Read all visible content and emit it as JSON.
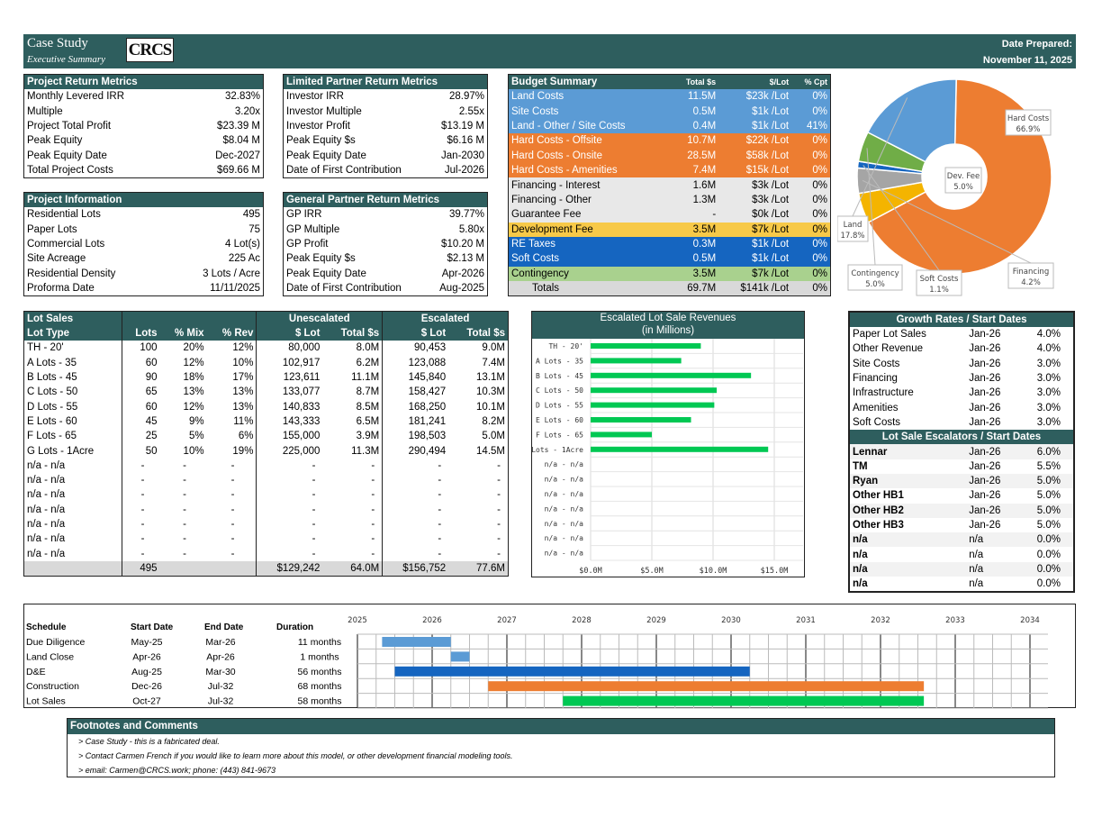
{
  "header": {
    "title": "Case Study",
    "subtitle": "Executive Summary",
    "logo_text": "CRCS",
    "date_label": "Date Prepared:",
    "date_value": "November 11, 2025"
  },
  "project_return": {
    "title": "Project Return Metrics",
    "rows": [
      {
        "label": "Monthly Levered IRR",
        "value": "32.83%"
      },
      {
        "label": "Multiple",
        "value": "3.20x"
      },
      {
        "label": "Project Total Profit",
        "value": "$23.39 M"
      },
      {
        "label": "Peak Equity",
        "value": "$8.04 M"
      },
      {
        "label": "Peak Equity Date",
        "value": "Dec-2027"
      },
      {
        "label": "Total Project Costs",
        "value": "$69.66 M"
      }
    ]
  },
  "project_info": {
    "title": "Project Information",
    "rows": [
      {
        "label": "Residential Lots",
        "value": "495"
      },
      {
        "label": "Paper Lots",
        "value": "75"
      },
      {
        "label": "Commercial Lots",
        "value": "4 Lot(s)"
      },
      {
        "label": "Site Acreage",
        "value": "225 Ac"
      },
      {
        "label": "Residential Density",
        "value": "3 Lots / Acre"
      },
      {
        "label": "Proforma Date",
        "value": "11/11/2025"
      }
    ]
  },
  "lp_return": {
    "title": "Limited Partner Return Metrics",
    "rows": [
      {
        "label": "Investor IRR",
        "value": "28.97%"
      },
      {
        "label": "Investor Multiple",
        "value": "2.55x"
      },
      {
        "label": "Investor Profit",
        "value": "$13.19 M"
      },
      {
        "label": "Peak Equity $s",
        "value": "$6.16 M"
      },
      {
        "label": "Peak Equity Date",
        "value": "Jan-2030"
      },
      {
        "label": "Date of First Contribution",
        "value": "Jul-2026"
      }
    ]
  },
  "gp_return": {
    "title": "General Partner Return Metrics",
    "rows": [
      {
        "label": "GP IRR",
        "value": "39.77%"
      },
      {
        "label": "GP Multiple",
        "value": "5.80x"
      },
      {
        "label": "GP Profit",
        "value": "$10.20 M"
      },
      {
        "label": "Peak Equity $s",
        "value": "$2.13 M"
      },
      {
        "label": "Peak Equity Date",
        "value": "Apr-2026"
      },
      {
        "label": "Date of First Contribution",
        "value": "Aug-2025"
      }
    ]
  },
  "budget": {
    "title": "Budget Summary",
    "col_total": "Total $s",
    "col_lot": "$/Lot",
    "col_cpt": "% Cpt",
    "rows": [
      {
        "label": "Land Costs",
        "total": "11.5M",
        "lot": "$23k /Lot",
        "cpt": "0%",
        "cls": "bl"
      },
      {
        "label": "Site Costs",
        "total": "0.5M",
        "lot": "$1k /Lot",
        "cpt": "0%",
        "cls": "bl"
      },
      {
        "label": "Land - Other / Site Costs",
        "total": "0.4M",
        "lot": "$1k /Lot",
        "cpt": "41%",
        "cls": "bl"
      },
      {
        "label": "Hard Costs - Offsite",
        "total": "10.7M",
        "lot": "$22k /Lot",
        "cpt": "0%",
        "cls": "or"
      },
      {
        "label": "Hard Costs - Onsite",
        "total": "28.5M",
        "lot": "$58k /Lot",
        "cpt": "0%",
        "cls": "or"
      },
      {
        "label": "Hard Costs - Amenities",
        "total": "7.4M",
        "lot": "$15k /Lot",
        "cpt": "0%",
        "cls": "or"
      },
      {
        "label": "Financing - Interest",
        "total": "1.6M",
        "lot": "$3k /Lot",
        "cpt": "0%",
        "cls": "gy"
      },
      {
        "label": "Financing - Other",
        "total": "1.3M",
        "lot": "$3k /Lot",
        "cpt": "0%",
        "cls": "gy"
      },
      {
        "label": "Guarantee Fee",
        "total": "-",
        "lot": "$0k /Lot",
        "cpt": "0%",
        "cls": "gy"
      },
      {
        "label": "Development Fee",
        "total": "3.5M",
        "lot": "$7k /Lot",
        "cpt": "0%",
        "cls": "yl"
      },
      {
        "label": "RE Taxes",
        "total": "0.3M",
        "lot": "$1k /Lot",
        "cpt": "0%",
        "cls": "db"
      },
      {
        "label": "Soft Costs",
        "total": "0.5M",
        "lot": "$1k /Lot",
        "cpt": "0%",
        "cls": "db"
      },
      {
        "label": "Contingency",
        "total": "3.5M",
        "lot": "$7k /Lot",
        "cpt": "0%",
        "cls": "gr"
      }
    ],
    "totals": {
      "label": "Totals",
      "total": "69.7M",
      "lot": "$141k /Lot",
      "cpt": "0%"
    }
  },
  "chart_data": [
    {
      "type": "pie",
      "labels": [
        "Hard Costs",
        "Dev. Fee",
        "Financing",
        "Soft Costs",
        "Contingency",
        "Land"
      ],
      "values": [
        66.9,
        5.0,
        4.2,
        1.1,
        5.0,
        17.8
      ],
      "value_labels": [
        "66.9%",
        "5.0%",
        "4.2%",
        "1.1%",
        "5.0%",
        "17.8%"
      ],
      "colors": [
        "#ed7d31",
        "#f4b400",
        "#a5a5a5",
        "#1565c0",
        "#70ad47",
        "#5b9bd5"
      ]
    },
    {
      "type": "bar",
      "title": "Escalated Lot Sale Revenues",
      "subtitle": "(in Millions)",
      "categories": [
        "TH - 20'",
        "A Lots - 35",
        "B Lots - 45",
        "C Lots - 50",
        "D Lots - 55",
        "E Lots - 60",
        "F Lots - 65",
        "G Lots - 1Acre",
        "n/a - n/a",
        "n/a - n/a",
        "n/a - n/a",
        "n/a - n/a",
        "n/a - n/a",
        "n/a - n/a",
        "n/a - n/a"
      ],
      "values": [
        9.0,
        7.4,
        13.1,
        10.3,
        10.1,
        8.2,
        5.0,
        14.5,
        0,
        0,
        0,
        0,
        0,
        0,
        0
      ],
      "xlim": [
        0,
        15
      ],
      "ticks": [
        0,
        5,
        10,
        15
      ],
      "tick_labels": [
        "$0.0M",
        "$5.0M",
        "$10.0M",
        "$15.0M"
      ],
      "color": "#00c853"
    }
  ],
  "lot_sales": {
    "h1": "Lot Sales",
    "h_unesc": "Unescalated",
    "h_esc": "Escalated",
    "cols": [
      "Lot Type",
      "Lots",
      "% Mix",
      "% Rev",
      "$ Lot",
      "Total $s",
      "$ Lot",
      "Total $s"
    ],
    "rows": [
      [
        "TH - 20'",
        "100",
        "20%",
        "12%",
        "80,000",
        "8.0M",
        "90,453",
        "9.0M"
      ],
      [
        "A Lots - 35",
        "60",
        "12%",
        "10%",
        "102,917",
        "6.2M",
        "123,088",
        "7.4M"
      ],
      [
        "B Lots - 45",
        "90",
        "18%",
        "17%",
        "123,611",
        "11.1M",
        "145,840",
        "13.1M"
      ],
      [
        "C Lots - 50",
        "65",
        "13%",
        "13%",
        "133,077",
        "8.7M",
        "158,427",
        "10.3M"
      ],
      [
        "D Lots - 55",
        "60",
        "12%",
        "13%",
        "140,833",
        "8.5M",
        "168,250",
        "10.1M"
      ],
      [
        "E Lots - 60",
        "45",
        "9%",
        "11%",
        "143,333",
        "6.5M",
        "181,241",
        "8.2M"
      ],
      [
        "F Lots - 65",
        "25",
        "5%",
        "6%",
        "155,000",
        "3.9M",
        "198,503",
        "5.0M"
      ],
      [
        "G Lots - 1Acre",
        "50",
        "10%",
        "19%",
        "225,000",
        "11.3M",
        "290,494",
        "14.5M"
      ],
      [
        "n/a - n/a",
        "-",
        "-",
        "-",
        "-",
        "-",
        "-",
        "-"
      ],
      [
        "n/a - n/a",
        "-",
        "-",
        "-",
        "-",
        "-",
        "-",
        "-"
      ],
      [
        "n/a - n/a",
        "-",
        "-",
        "-",
        "-",
        "-",
        "-",
        "-"
      ],
      [
        "n/a - n/a",
        "-",
        "-",
        "-",
        "-",
        "-",
        "-",
        "-"
      ],
      [
        "n/a - n/a",
        "-",
        "-",
        "-",
        "-",
        "-",
        "-",
        "-"
      ],
      [
        "n/a - n/a",
        "-",
        "-",
        "-",
        "-",
        "-",
        "-",
        "-"
      ],
      [
        "n/a - n/a",
        "-",
        "-",
        "-",
        "-",
        "-",
        "-",
        "-"
      ]
    ],
    "totals": [
      "",
      "495",
      "",
      "",
      "$129,242",
      "64.0M",
      "$156,752",
      "77.6M"
    ]
  },
  "growth": {
    "title": "Growth Rates / Start Dates",
    "rows": [
      [
        "Paper Lot Sales",
        "Jan-26",
        "4.0%"
      ],
      [
        "Other Revenue",
        "Jan-26",
        "4.0%"
      ],
      [
        "Site Costs",
        "Jan-26",
        "3.0%"
      ],
      [
        "Financing",
        "Jan-26",
        "3.0%"
      ],
      [
        "Infrastructure",
        "Jan-26",
        "3.0%"
      ],
      [
        "Amenities",
        "Jan-26",
        "3.0%"
      ],
      [
        "Soft Costs",
        "Jan-26",
        "3.0%"
      ]
    ]
  },
  "escalators": {
    "title": "Lot Sale Escalators / Start Dates",
    "rows": [
      [
        "Lennar",
        "Jan-26",
        "6.0%"
      ],
      [
        "TM",
        "Jan-26",
        "5.5%"
      ],
      [
        "Ryan",
        "Jan-26",
        "5.0%"
      ],
      [
        "Other HB1",
        "Jan-26",
        "5.0%"
      ],
      [
        "Other HB2",
        "Jan-26",
        "5.0%"
      ],
      [
        "Other HB3",
        "Jan-26",
        "5.0%"
      ],
      [
        "n/a",
        "n/a",
        "0.0%"
      ],
      [
        "n/a",
        "n/a",
        "0.0%"
      ],
      [
        "n/a",
        "n/a",
        "0.0%"
      ],
      [
        "n/a",
        "n/a",
        "0.0%"
      ]
    ]
  },
  "schedule": {
    "cols": [
      "Schedule",
      "Start Date",
      "End Date",
      "Duration"
    ],
    "years": [
      "2025",
      "2026",
      "2027",
      "2028",
      "2029",
      "2030",
      "2031",
      "2032",
      "2033",
      "2034"
    ],
    "rows": [
      {
        "name": "Due Diligence",
        "start": "May-25",
        "end": "Mar-26",
        "duration": "11 months",
        "start_year": 2025.33,
        "end_year": 2026.25,
        "color": "#5b9bd5"
      },
      {
        "name": "Land Close",
        "start": "Apr-26",
        "end": "Apr-26",
        "duration": "1 months",
        "start_year": 2026.25,
        "end_year": 2026.5,
        "color": "#5b9bd5"
      },
      {
        "name": "D&E",
        "start": "Aug-25",
        "end": "Mar-30",
        "duration": "56 months",
        "start_year": 2025.5,
        "end_year": 2030.25,
        "color": "#1565c0"
      },
      {
        "name": "Construction",
        "start": "Dec-26",
        "end": "Jul-32",
        "duration": "68 months",
        "start_year": 2026.75,
        "end_year": 2032.58,
        "color": "#ed7d31"
      },
      {
        "name": "Lot Sales",
        "start": "Oct-27",
        "end": "Jul-32",
        "duration": "58 months",
        "start_year": 2027.75,
        "end_year": 2032.58,
        "color": "#00c853"
      }
    ]
  },
  "footnotes": {
    "title": "Footnotes and Comments",
    "items": [
      "Case Study - this is a fabricated deal.",
      "Contact Carmen French if you would like to learn more about this model, or other development financial modeling tools.",
      "email: Carmen@CRCS.work; phone: (443) 841-9673"
    ]
  }
}
